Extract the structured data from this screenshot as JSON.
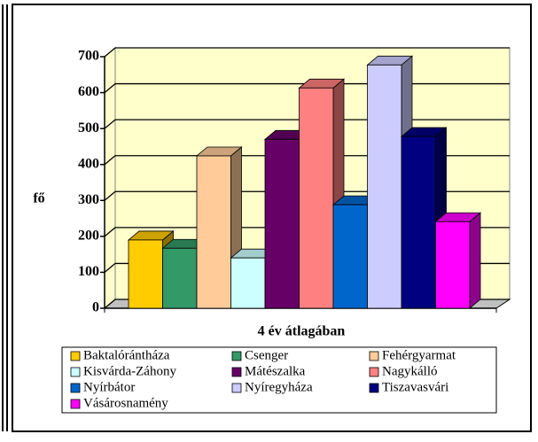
{
  "chart_data": {
    "type": "bar3d",
    "y_label": "fő",
    "x_label": "4 év átlagában",
    "ylim": [
      0,
      700
    ],
    "yticks": [
      0,
      100,
      200,
      300,
      400,
      500,
      600,
      700
    ],
    "grid": true,
    "series": [
      {
        "name": "Baktalórántháza",
        "color": "#ffcc00",
        "values": [
          190
        ]
      },
      {
        "name": "Csenger",
        "color": "#339966",
        "values": [
          167
        ]
      },
      {
        "name": "Fehérgyarmat",
        "color": "#ffcc99",
        "values": [
          424
        ]
      },
      {
        "name": "Kisvárda-Záhony",
        "color": "#ccffff",
        "values": [
          140
        ]
      },
      {
        "name": "Mátészalka",
        "color": "#660066",
        "values": [
          470
        ]
      },
      {
        "name": "Nagykálló",
        "color": "#ff8080",
        "values": [
          613
        ]
      },
      {
        "name": "Nyírbátor",
        "color": "#0066cc",
        "values": [
          288
        ]
      },
      {
        "name": "Nyíregyháza",
        "color": "#ccccff",
        "values": [
          677
        ]
      },
      {
        "name": "Tiszavasvári",
        "color": "#000080",
        "values": [
          478
        ]
      },
      {
        "name": "Vásárosnamény",
        "color": "#ff00ff",
        "values": [
          241
        ]
      }
    ]
  }
}
